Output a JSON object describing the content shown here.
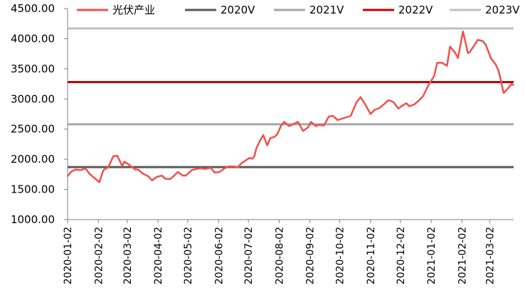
{
  "chart_data": {
    "type": "line",
    "title": "",
    "xlabel": "",
    "ylabel": "",
    "ylim": [
      1000,
      4500
    ],
    "yticks": [
      "1000.00",
      "1500.00",
      "2000.00",
      "2500.00",
      "3000.00",
      "3500.00",
      "4000.00",
      "4500.00"
    ],
    "ytick_values": [
      1000,
      1500,
      2000,
      2500,
      3000,
      3500,
      4000,
      4500
    ],
    "xlim": [
      "2020-01-02",
      "2021-03-26"
    ],
    "xticks": [
      "2020-01-02",
      "2020-02-02",
      "2020-03-02",
      "2020-04-02",
      "2020-05-02",
      "2020-06-02",
      "2020-07-02",
      "2020-08-02",
      "2020-09-02",
      "2020-10-02",
      "2020-11-02",
      "2020-12-02",
      "2021-01-02",
      "2021-02-02",
      "2021-03-02"
    ],
    "grid": false,
    "legend": "top",
    "series": [
      {
        "name": "光伏产业",
        "color": "#f0504c",
        "x": [
          "2020-01-02",
          "2020-01-06",
          "2020-01-10",
          "2020-01-15",
          "2020-01-20",
          "2020-01-24",
          "2020-02-03",
          "2020-02-07",
          "2020-02-12",
          "2020-02-17",
          "2020-02-21",
          "2020-02-26",
          "2020-02-28",
          "2020-03-03",
          "2020-03-06",
          "2020-03-10",
          "2020-03-13",
          "2020-03-18",
          "2020-03-23",
          "2020-03-27",
          "2020-04-01",
          "2020-04-06",
          "2020-04-09",
          "2020-04-14",
          "2020-04-17",
          "2020-04-22",
          "2020-04-27",
          "2020-04-30",
          "2020-05-06",
          "2020-05-11",
          "2020-05-15",
          "2020-05-20",
          "2020-05-25",
          "2020-05-29",
          "2020-06-03",
          "2020-06-08",
          "2020-06-12",
          "2020-06-17",
          "2020-06-22",
          "2020-06-24",
          "2020-06-30",
          "2020-07-03",
          "2020-07-06",
          "2020-07-08",
          "2020-07-10",
          "2020-07-14",
          "2020-07-17",
          "2020-07-21",
          "2020-07-24",
          "2020-07-28",
          "2020-07-31",
          "2020-08-04",
          "2020-08-07",
          "2020-08-12",
          "2020-08-17",
          "2020-08-21",
          "2020-08-26",
          "2020-08-31",
          "2020-09-03",
          "2020-09-08",
          "2020-09-11",
          "2020-09-16",
          "2020-09-21",
          "2020-09-25",
          "2020-09-30",
          "2020-10-13",
          "2020-10-19",
          "2020-10-23",
          "2020-10-28",
          "2020-11-02",
          "2020-11-06",
          "2020-11-11",
          "2020-11-16",
          "2020-11-20",
          "2020-11-25",
          "2020-11-30",
          "2020-12-03",
          "2020-12-08",
          "2020-12-11",
          "2020-12-16",
          "2020-12-21",
          "2020-12-25",
          "2020-12-30",
          "2021-01-05",
          "2021-01-08",
          "2021-01-13",
          "2021-01-18",
          "2021-01-21",
          "2021-01-26",
          "2021-01-29",
          "2021-02-03",
          "2021-02-08",
          "2021-02-10",
          "2021-02-18",
          "2021-02-23",
          "2021-02-26",
          "2021-03-03",
          "2021-03-08",
          "2021-03-11",
          "2021-03-16",
          "2021-03-19",
          "2021-03-24",
          "2021-03-26"
        ],
        "values": [
          1720,
          1800,
          1830,
          1820,
          1850,
          1760,
          1620,
          1820,
          1870,
          2050,
          2060,
          1890,
          1960,
          1920,
          1880,
          1830,
          1830,
          1760,
          1720,
          1650,
          1710,
          1730,
          1680,
          1670,
          1710,
          1790,
          1730,
          1730,
          1820,
          1840,
          1850,
          1840,
          1860,
          1780,
          1790,
          1850,
          1880,
          1880,
          1870,
          1920,
          1990,
          2020,
          2010,
          2050,
          2180,
          2320,
          2400,
          2230,
          2350,
          2370,
          2410,
          2560,
          2620,
          2550,
          2590,
          2620,
          2470,
          2530,
          2620,
          2550,
          2570,
          2560,
          2710,
          2720,
          2650,
          2720,
          2950,
          3030,
          2900,
          2750,
          2820,
          2850,
          2920,
          2980,
          2950,
          2840,
          2880,
          2930,
          2880,
          2910,
          2980,
          3050,
          3220,
          3380,
          3600,
          3600,
          3550,
          3870,
          3770,
          3680,
          4120,
          3760,
          3780,
          3980,
          3960,
          3900,
          3680,
          3570,
          3460,
          3100,
          3150,
          3250,
          3230
        ]
      },
      {
        "name": "2020V",
        "color": "#595959",
        "values": [
          1870
        ]
      },
      {
        "name": "2021V",
        "color": "#a6a6a6",
        "values": [
          2580
        ]
      },
      {
        "name": "2022V",
        "color": "#c00000",
        "values": [
          3280
        ]
      },
      {
        "name": "2023V",
        "color": "#bfbfbf",
        "values": [
          4170
        ]
      }
    ]
  }
}
